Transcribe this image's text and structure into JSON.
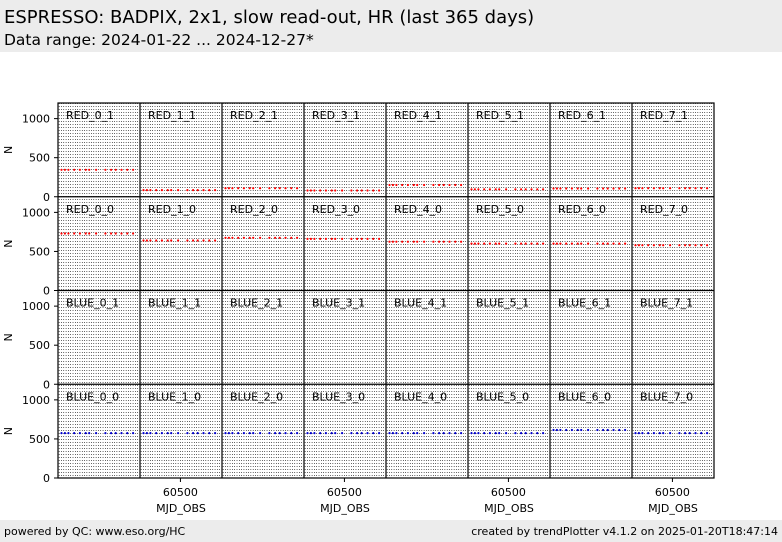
{
  "header": {
    "title": "ESPRESSO: BADPIX, 2x1, slow read-out, HR (last 365 days)",
    "subtitle": "Data range: 2024-01-22 ... 2024-12-27*"
  },
  "footer": {
    "left": "powered by QC: www.eso.org/HC",
    "right": "created by trendPlotter v4.1.2 on 2025-01-20T18:47:14"
  },
  "colors": {
    "red": "#ff0000",
    "blue": "#0000cc",
    "header_band": "#ececec"
  },
  "chart_data": {
    "type": "scatter",
    "layout": "4 rows x 8 columns of small multiples sharing axes",
    "xlabel": "MJD_OBS",
    "ylabel": "N",
    "x_ticks": [
      60500
    ],
    "y_ticks": [
      0,
      500,
      1000
    ],
    "ylim": [
      0,
      1200
    ],
    "xlim": [
      60325,
      60680
    ],
    "grid": "dotted vertical gridlines",
    "x_obs": [
      60340,
      60355,
      60370,
      60395,
      60420,
      60445,
      60460,
      60490,
      60530,
      60555,
      60575,
      60600,
      60625,
      60650
    ],
    "rows": [
      {
        "color": "red",
        "panels": [
          {
            "label": "RED_0_1",
            "value": 345
          },
          {
            "label": "RED_1_1",
            "value": 85
          },
          {
            "label": "RED_2_1",
            "value": 110
          },
          {
            "label": "RED_3_1",
            "value": 80
          },
          {
            "label": "RED_4_1",
            "value": 150
          },
          {
            "label": "RED_5_1",
            "value": 95
          },
          {
            "label": "RED_6_1",
            "value": 105
          },
          {
            "label": "RED_7_1",
            "value": 110
          }
        ]
      },
      {
        "color": "red",
        "panels": [
          {
            "label": "RED_0_0",
            "value": 730
          },
          {
            "label": "RED_1_0",
            "value": 640
          },
          {
            "label": "RED_2_0",
            "value": 675
          },
          {
            "label": "RED_3_0",
            "value": 660
          },
          {
            "label": "RED_4_0",
            "value": 625
          },
          {
            "label": "RED_5_0",
            "value": 600
          },
          {
            "label": "RED_6_0",
            "value": 600
          },
          {
            "label": "RED_7_0",
            "value": 580
          }
        ]
      },
      {
        "color": "blue",
        "panels": [
          {
            "label": "BLUE_0_1",
            "value": null
          },
          {
            "label": "BLUE_1_1",
            "value": null
          },
          {
            "label": "BLUE_2_1",
            "value": null
          },
          {
            "label": "BLUE_3_1",
            "value": null
          },
          {
            "label": "BLUE_4_1",
            "value": null
          },
          {
            "label": "BLUE_5_1",
            "value": null
          },
          {
            "label": "BLUE_6_1",
            "value": null
          },
          {
            "label": "BLUE_7_1",
            "value": null
          }
        ]
      },
      {
        "color": "blue",
        "panels": [
          {
            "label": "BLUE_0_0",
            "value": 575
          },
          {
            "label": "BLUE_1_0",
            "value": 575
          },
          {
            "label": "BLUE_2_0",
            "value": 575
          },
          {
            "label": "BLUE_3_0",
            "value": 575
          },
          {
            "label": "BLUE_4_0",
            "value": 575
          },
          {
            "label": "BLUE_5_0",
            "value": 575
          },
          {
            "label": "BLUE_6_0",
            "value": 615
          },
          {
            "label": "BLUE_7_0",
            "value": 575
          }
        ]
      }
    ]
  }
}
